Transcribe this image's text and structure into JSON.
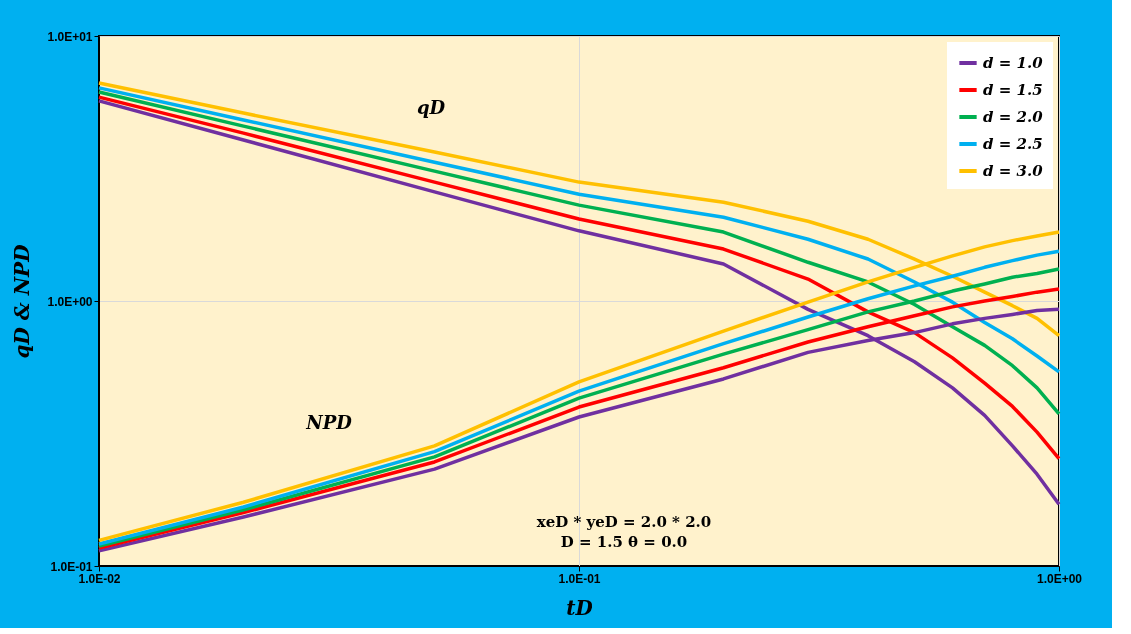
{
  "chart_data": {
    "type": "line",
    "xlabel": "tD",
    "ylabel": "qD & NPD",
    "log": "xy",
    "grid": true,
    "legend": "top right",
    "line_style": "solid",
    "marker": "none",
    "xlim": [
      0.01,
      1.0
    ],
    "ylim": [
      0.1,
      10
    ],
    "xticks": [
      {
        "value": 0.01,
        "label": "1.0E-02"
      },
      {
        "value": 0.1,
        "label": "1.0E-01"
      },
      {
        "value": 1.0,
        "label": "1.0E+00"
      }
    ],
    "yticks": [
      {
        "value": 0.1,
        "label": "1.0E-01"
      },
      {
        "value": 1.0,
        "label": "1.0E+00"
      },
      {
        "value": 10,
        "label": "1.0E+01"
      }
    ],
    "x": [
      0.01,
      0.02,
      0.05,
      0.1,
      0.2,
      0.3,
      0.4,
      0.5,
      0.6,
      0.7,
      0.8,
      0.9,
      1.0
    ],
    "series": [
      {
        "name": "d = 1.0",
        "color": "#7030a0",
        "values": [
          5.69,
          4.05,
          2.58,
          1.84,
          1.38,
          0.93,
          0.74,
          0.59,
          0.47,
          0.37,
          0.284,
          0.222,
          0.171
        ]
      },
      {
        "name": "d = 1.5",
        "color": "#ff0000",
        "values": [
          5.88,
          4.3,
          2.81,
          2.04,
          1.57,
          1.21,
          0.91,
          0.76,
          0.61,
          0.49,
          0.4,
          0.32,
          0.254
        ]
      },
      {
        "name": "d = 2.0",
        "color": "#00b050",
        "values": [
          6.15,
          4.57,
          3.09,
          2.3,
          1.82,
          1.4,
          1.18,
          0.97,
          0.8,
          0.68,
          0.57,
          0.47,
          0.375
        ]
      },
      {
        "name": "d = 2.5",
        "color": "#00b0f0",
        "values": [
          6.37,
          4.82,
          3.34,
          2.53,
          2.07,
          1.71,
          1.44,
          1.18,
          0.99,
          0.83,
          0.72,
          0.62,
          0.54
        ]
      },
      {
        "name": "d = 3.0",
        "color": "#ffc000",
        "values": [
          6.65,
          5.12,
          3.65,
          2.81,
          2.36,
          2.0,
          1.71,
          1.44,
          1.24,
          1.08,
          0.96,
          0.86,
          0.74
        ]
      },
      {
        "color": "#7030a0",
        "values": [
          0.114,
          0.153,
          0.232,
          0.365,
          0.508,
          0.64,
          0.71,
          0.76,
          0.82,
          0.86,
          0.89,
          0.92,
          0.93
        ]
      },
      {
        "color": "#ff0000",
        "values": [
          0.117,
          0.159,
          0.247,
          0.398,
          0.56,
          0.7,
          0.8,
          0.88,
          0.95,
          1.0,
          1.04,
          1.08,
          1.11
        ]
      },
      {
        "color": "#00b050",
        "values": [
          0.119,
          0.163,
          0.258,
          0.43,
          0.63,
          0.78,
          0.91,
          1.0,
          1.09,
          1.16,
          1.23,
          1.27,
          1.32
        ]
      },
      {
        "color": "#00b0f0",
        "values": [
          0.121,
          0.167,
          0.27,
          0.457,
          0.69,
          0.87,
          1.02,
          1.14,
          1.24,
          1.34,
          1.42,
          1.49,
          1.54
        ]
      },
      {
        "color": "#ffc000",
        "values": [
          0.125,
          0.174,
          0.284,
          0.495,
          0.77,
          0.99,
          1.18,
          1.34,
          1.48,
          1.6,
          1.69,
          1.76,
          1.82
        ]
      }
    ],
    "annotations": [
      "qD",
      "NPD",
      "xeD * yeD = 2.0 * 2.0\nD = 1.5      θ = 0.0"
    ]
  }
}
